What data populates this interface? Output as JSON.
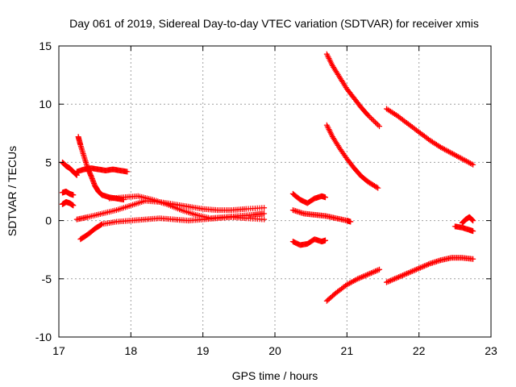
{
  "chart_data": {
    "type": "scatter",
    "title": "Day 061 of 2019, Sidereal Day-to-day VTEC variation (SDTVAR) for receiver xmis",
    "xlabel": "GPS time / hours",
    "ylabel": "SDTVAR / TECUs",
    "xlim": [
      17,
      23
    ],
    "ylim": [
      -10,
      15
    ],
    "xticks": [
      "17",
      "18",
      "19",
      "20",
      "21",
      "22",
      "23"
    ],
    "yticks": [
      "-10",
      "-5",
      "0",
      "5",
      "10",
      "15"
    ],
    "grid": true,
    "marker": "+",
    "color": "#ff0000",
    "series": [
      {
        "name": "s1",
        "x": [
          17.05,
          17.1,
          17.15,
          17.2,
          17.25
        ],
        "y": [
          5.0,
          4.7,
          4.5,
          4.2,
          3.9
        ]
      },
      {
        "name": "s2",
        "x": [
          17.27,
          17.3,
          17.35,
          17.4,
          17.45,
          17.5,
          17.55,
          17.6,
          17.7,
          17.8,
          17.9
        ],
        "y": [
          7.2,
          6.5,
          5.5,
          4.5,
          3.8,
          3.0,
          2.5,
          2.2,
          2.0,
          1.9,
          1.8
        ]
      },
      {
        "name": "s3",
        "x": [
          17.25,
          17.35,
          17.45,
          17.55,
          17.65,
          17.75,
          17.85,
          17.95
        ],
        "y": [
          4.2,
          4.4,
          4.5,
          4.4,
          4.3,
          4.4,
          4.3,
          4.2
        ]
      },
      {
        "name": "s4",
        "x": [
          17.05,
          17.1,
          17.15,
          17.2
        ],
        "y": [
          2.4,
          2.5,
          2.3,
          2.2
        ]
      },
      {
        "name": "s5",
        "x": [
          17.05,
          17.1,
          17.15,
          17.2
        ],
        "y": [
          1.4,
          1.6,
          1.5,
          1.3
        ]
      },
      {
        "name": "s6",
        "x": [
          17.25,
          17.4,
          17.6,
          17.8,
          18.0,
          18.2,
          18.4,
          18.6,
          18.8,
          19.0,
          19.2,
          19.4,
          19.6,
          19.85
        ],
        "y": [
          0.1,
          0.3,
          0.6,
          0.9,
          1.3,
          1.7,
          1.6,
          1.4,
          1.2,
          1.0,
          0.9,
          0.9,
          1.0,
          1.1
        ]
      },
      {
        "name": "s7",
        "x": [
          17.3,
          17.4,
          17.5,
          17.6,
          17.8,
          18.0,
          18.2,
          18.4,
          18.6,
          18.8,
          19.0,
          19.2,
          19.4,
          19.6,
          19.85
        ],
        "y": [
          -1.6,
          -1.2,
          -0.7,
          -0.3,
          -0.1,
          0.0,
          0.1,
          0.2,
          0.1,
          0.0,
          0.1,
          0.2,
          0.3,
          0.2,
          0.1
        ]
      },
      {
        "name": "s8",
        "x": [
          17.7,
          17.9,
          18.1,
          18.3,
          18.5,
          18.7,
          18.9,
          19.1,
          19.3,
          19.5,
          19.7,
          19.85
        ],
        "y": [
          1.9,
          2.0,
          2.1,
          1.8,
          1.4,
          0.9,
          0.5,
          0.2,
          0.3,
          0.4,
          0.5,
          0.6
        ]
      },
      {
        "name": "s9",
        "x": [
          20.25,
          20.35,
          20.45,
          20.55,
          20.65,
          20.7
        ],
        "y": [
          2.3,
          1.8,
          1.5,
          1.9,
          2.1,
          2.0
        ]
      },
      {
        "name": "s10",
        "x": [
          20.25,
          20.4,
          20.55,
          20.7,
          20.85,
          21.0,
          21.05
        ],
        "y": [
          0.9,
          0.6,
          0.5,
          0.4,
          0.2,
          0.0,
          -0.1
        ]
      },
      {
        "name": "s11",
        "x": [
          20.25,
          20.35,
          20.45,
          20.55,
          20.65,
          20.7
        ],
        "y": [
          -1.8,
          -2.1,
          -2.0,
          -1.6,
          -1.8,
          -1.7
        ]
      },
      {
        "name": "s12",
        "x": [
          20.72,
          20.8,
          20.9,
          21.0,
          21.1,
          21.2,
          21.3,
          21.45
        ],
        "y": [
          14.3,
          13.3,
          12.3,
          11.3,
          10.5,
          9.7,
          9.0,
          8.1
        ]
      },
      {
        "name": "s13",
        "x": [
          20.72,
          20.8,
          20.9,
          21.0,
          21.1,
          21.2,
          21.3,
          21.43
        ],
        "y": [
          8.2,
          7.2,
          6.2,
          5.3,
          4.5,
          3.8,
          3.3,
          2.8
        ]
      },
      {
        "name": "s14",
        "x": [
          20.72,
          20.85,
          21.0,
          21.15,
          21.3,
          21.45
        ],
        "y": [
          -6.9,
          -6.2,
          -5.5,
          -5.0,
          -4.6,
          -4.2
        ]
      },
      {
        "name": "s15",
        "x": [
          21.55,
          21.7,
          21.85,
          22.0,
          22.15,
          22.3,
          22.45,
          22.6,
          22.75
        ],
        "y": [
          9.6,
          9.0,
          8.3,
          7.6,
          6.9,
          6.3,
          5.8,
          5.3,
          4.8
        ]
      },
      {
        "name": "s16",
        "x": [
          21.55,
          21.7,
          21.85,
          22.0,
          22.15,
          22.3,
          22.45,
          22.6,
          22.75
        ],
        "y": [
          -5.3,
          -4.9,
          -4.5,
          -4.1,
          -3.7,
          -3.4,
          -3.2,
          -3.2,
          -3.3
        ]
      },
      {
        "name": "s17",
        "x": [
          22.5,
          22.6,
          22.7,
          22.75
        ],
        "y": [
          -0.5,
          -0.6,
          -0.8,
          -0.9
        ]
      },
      {
        "name": "s18",
        "x": [
          22.6,
          22.65,
          22.7,
          22.75
        ],
        "y": [
          -0.2,
          0.1,
          0.3,
          0.0
        ]
      }
    ]
  }
}
